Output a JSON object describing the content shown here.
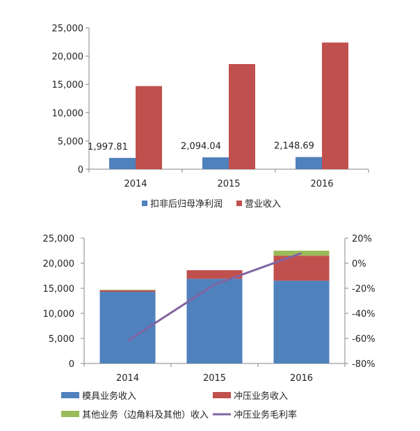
{
  "chart_data": [
    {
      "type": "bar",
      "categories": [
        "2014",
        "2015",
        "2016"
      ],
      "series": [
        {
          "name": "扣非后归母净利润",
          "values": [
            1997.81,
            2094.04,
            2148.69
          ],
          "data_labels": [
            "1,997.81",
            "2,094.04",
            "2,148.69"
          ],
          "color": "#4f81bd"
        },
        {
          "name": "营业收入",
          "values": [
            14700,
            18600,
            22400
          ],
          "color": "#c0504d"
        }
      ],
      "ylim": [
        0,
        25000
      ],
      "yticks": [
        "0",
        "5,000",
        "10,000",
        "15,000",
        "20,000",
        "25,000"
      ],
      "legend_position": "bottom"
    },
    {
      "type": "bar",
      "stacked": true,
      "categories": [
        "2014",
        "2015",
        "2016"
      ],
      "series": [
        {
          "name": "模具业务收入",
          "values": [
            14300,
            16900,
            16500
          ],
          "color": "#4f81bd",
          "axis": "left"
        },
        {
          "name": "冲压业务收入",
          "values": [
            300,
            1700,
            5000
          ],
          "color": "#c0504d",
          "axis": "left"
        },
        {
          "name": "其他业务（边角料及其他）收入",
          "values": [
            100,
            0,
            1000
          ],
          "color": "#9bbb59",
          "axis": "left"
        },
        {
          "name": "冲压业务毛利率",
          "type": "line",
          "values": [
            -62,
            -17,
            8
          ],
          "color": "#8064a2",
          "axis": "right"
        }
      ],
      "ylim": [
        0,
        25000
      ],
      "yticks": [
        "0",
        "5,000",
        "10,000",
        "15,000",
        "20,000",
        "25,000"
      ],
      "y2lim": [
        -80,
        20
      ],
      "y2ticks": [
        "-80%",
        "-60%",
        "-40%",
        "-20%",
        "0%",
        "20%"
      ],
      "legend_position": "bottom"
    }
  ]
}
